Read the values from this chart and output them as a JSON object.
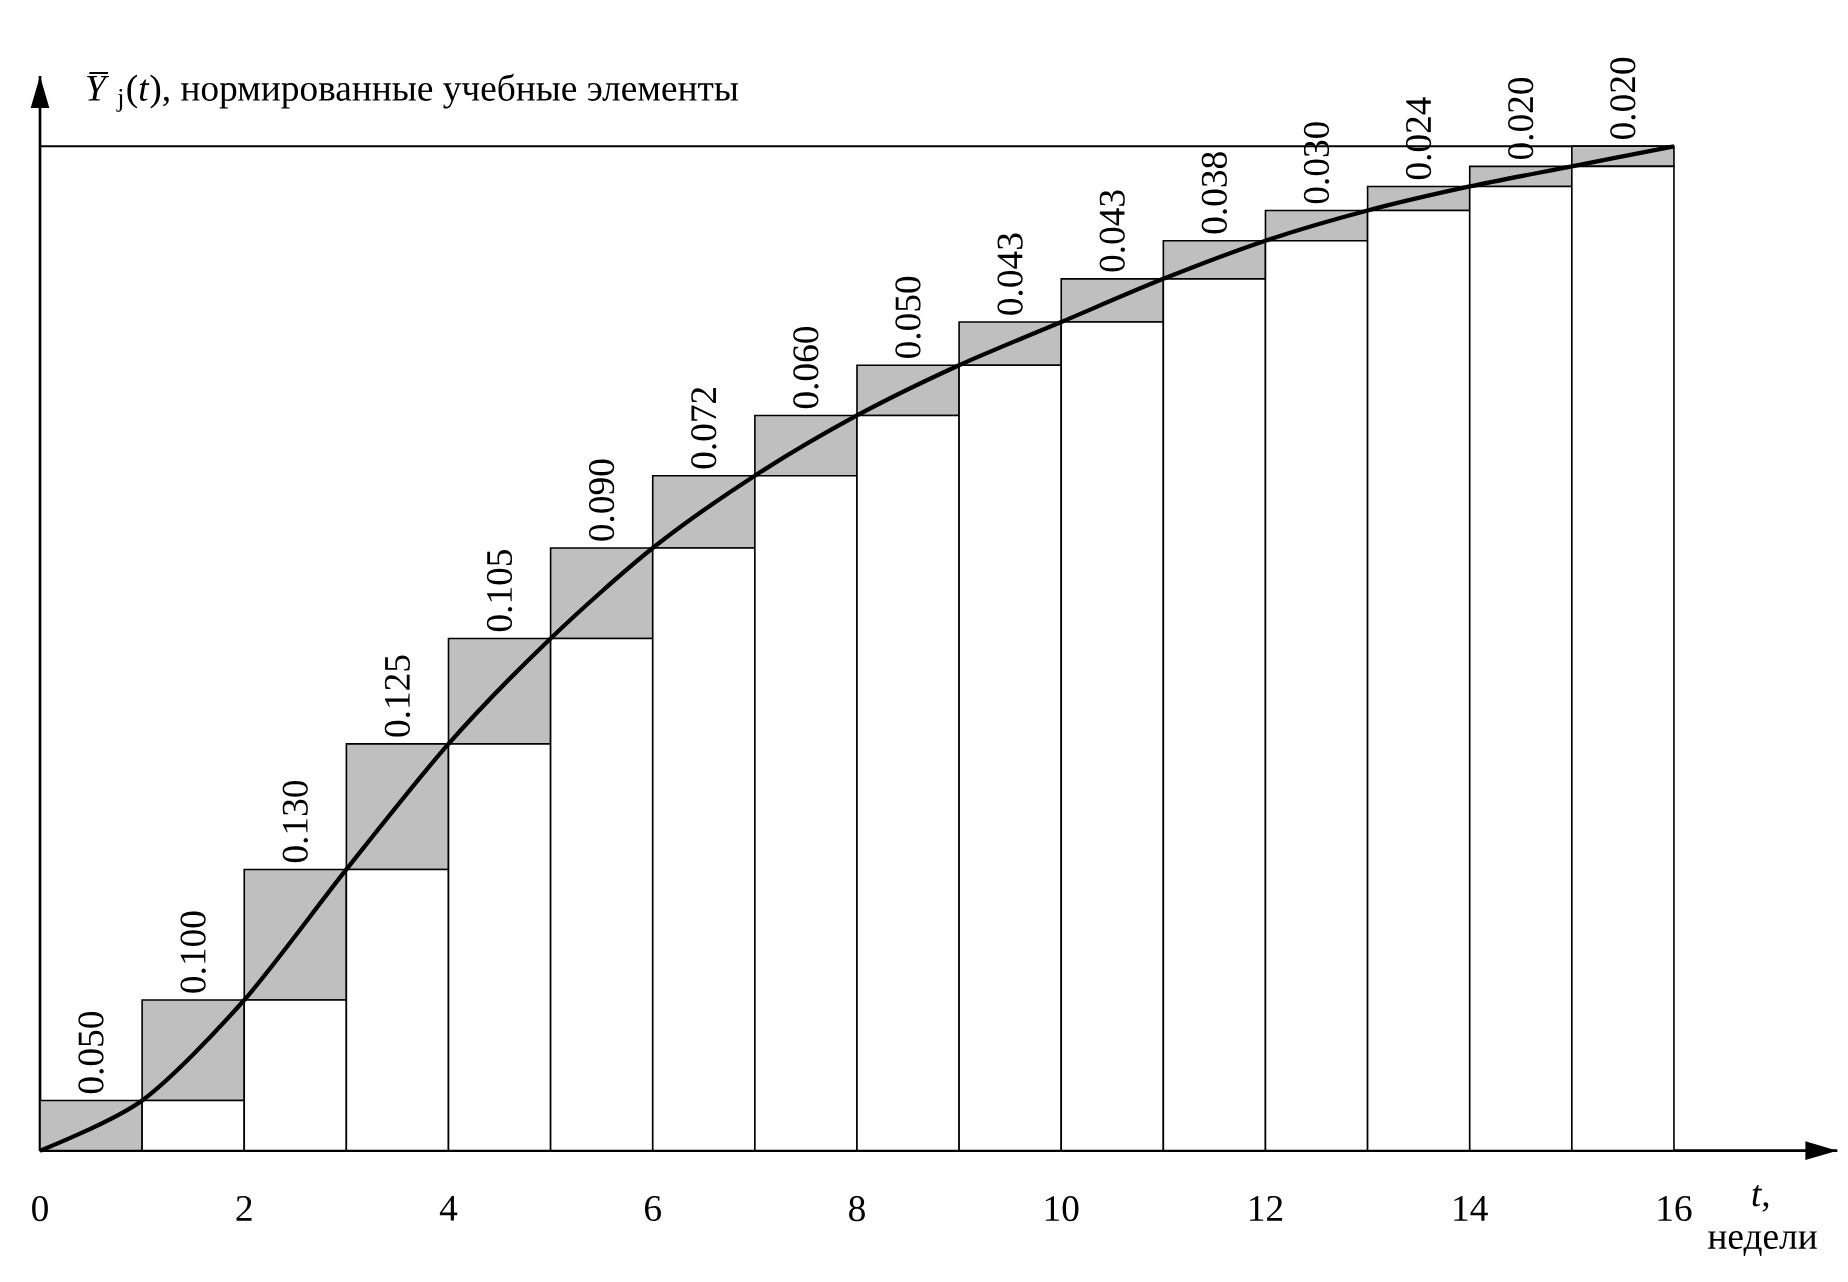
{
  "chart_data": {
    "type": "bar",
    "stacked": true,
    "ylabel": "*Y̅*$_{j}$(*t*), нормированные учебные элементы",
    "xlabel": "*t*, недели",
    "x": [
      0.5,
      1.5,
      2.5,
      3.5,
      4.5,
      5.5,
      6.5,
      7.5,
      8.5,
      9.5,
      10.5,
      11.5,
      12.5,
      13.5,
      14.5,
      15.5
    ],
    "series": [
      {
        "color": "#ffffff",
        "values": [
          0,
          0.05,
          0.15,
          0.28,
          0.405,
          0.51,
          0.6,
          0.672,
          0.732,
          0.782,
          0.825,
          0.868,
          0.906,
          0.936,
          0.96,
          0.98
        ]
      },
      {
        "color": "#bfbfbf",
        "values": [
          0.05,
          0.1,
          0.13,
          0.125,
          0.105,
          0.09,
          0.072,
          0.06,
          0.05,
          0.043,
          0.043,
          0.038,
          0.03,
          0.024,
          0.02,
          0.02
        ],
        "value_labels": [
          "0.050",
          "0.100",
          "0.130",
          "0.125",
          "0.105",
          "0.090",
          "0.072",
          "0.060",
          "0.050",
          "0.043",
          "0.043",
          "0.038",
          "0.030",
          "0.024",
          "0.020",
          "0.020"
        ]
      },
      {
        "type": "line",
        "color": "#000000",
        "x": [
          0,
          1,
          2,
          3,
          4,
          5,
          6,
          7,
          8,
          9,
          10,
          11,
          12,
          13,
          14,
          15,
          16
        ],
        "values": [
          0,
          0.05,
          0.15,
          0.28,
          0.405,
          0.51,
          0.6,
          0.672,
          0.732,
          0.782,
          0.825,
          0.868,
          0.906,
          0.936,
          0.96,
          0.98,
          1.0
        ]
      }
    ],
    "ref_lines": [
      {
        "axis": "y",
        "value": 1.0,
        "color": "#000000"
      }
    ],
    "xlim": [
      0,
      17.6
    ],
    "ylim": [
      0,
      1.07
    ],
    "xticks": [
      0,
      2,
      4,
      6,
      8,
      10,
      12,
      14,
      16
    ],
    "tick_labels": "x",
    "grid": false
  }
}
